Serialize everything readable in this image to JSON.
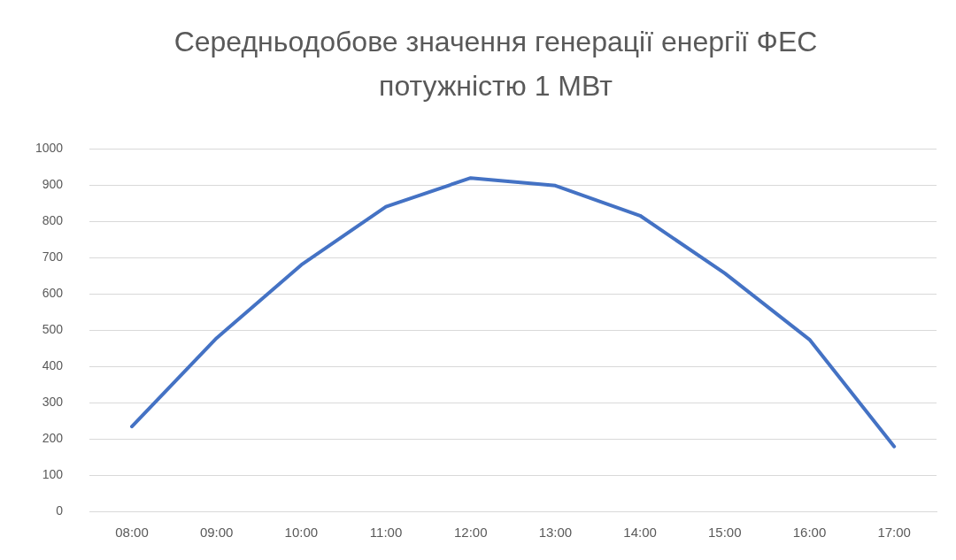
{
  "chart_data": {
    "type": "line",
    "title": "Середньодобове значення генерації енергії ФЕС потужністю 1 МВт",
    "categories": [
      "08:00",
      "09:00",
      "10:00",
      "11:00",
      "12:00",
      "13:00",
      "14:00",
      "15:00",
      "16:00",
      "17:00"
    ],
    "values": [
      234,
      478,
      680,
      841,
      920,
      899,
      816,
      657,
      474,
      179
    ],
    "color": "#4472c4",
    "ylim": [
      0,
      1000
    ],
    "yticks": [
      0,
      100,
      200,
      300,
      400,
      500,
      600,
      700,
      800,
      900,
      1000
    ],
    "grid": "y",
    "marker": "none",
    "line_style": "solid",
    "legend": false
  }
}
